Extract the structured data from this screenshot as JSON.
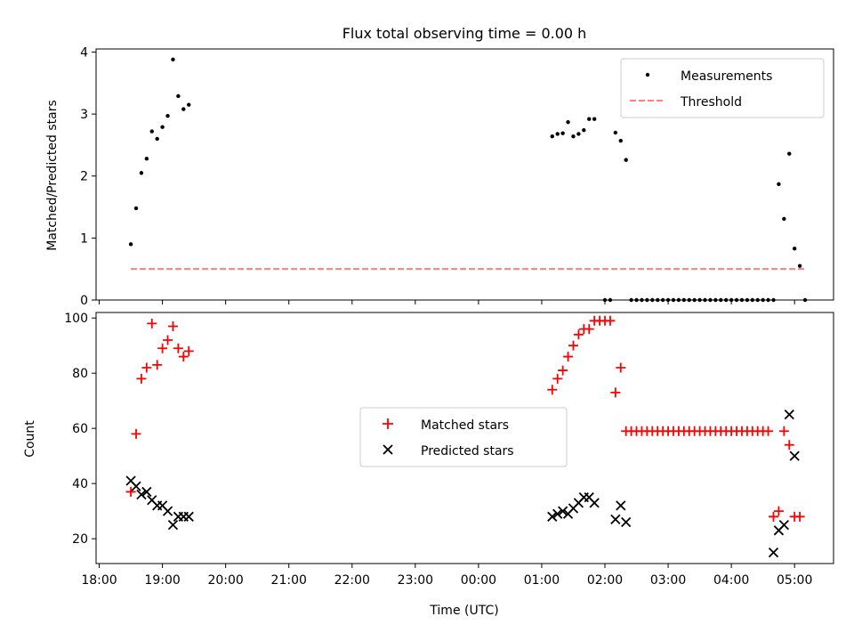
{
  "chart_data": [
    {
      "type": "scatter",
      "title": "Flux total observing time = 0.00 h",
      "ylabel": "Matched/Predicted stars",
      "ylim": [
        0,
        4.05
      ],
      "yticks": [
        0,
        1,
        2,
        3,
        4
      ],
      "legend": {
        "placement": "top-right",
        "entries": [
          "Measurements",
          "Threshold"
        ]
      },
      "series": [
        {
          "name": "Measurements",
          "marker": "dot",
          "color": "#000000",
          "x": [
            "18:30",
            "18:35",
            "18:40",
            "18:45",
            "18:50",
            "18:55",
            "19:00",
            "19:05",
            "19:10",
            "19:15",
            "19:20",
            "19:25",
            "01:10",
            "01:15",
            "01:20",
            "01:25",
            "01:30",
            "01:35",
            "01:40",
            "01:45",
            "01:50",
            "02:00",
            "02:05",
            "02:10",
            "02:15",
            "02:20",
            "02:25",
            "02:30",
            "02:35",
            "02:40",
            "02:45",
            "02:50",
            "02:55",
            "03:00",
            "03:05",
            "03:10",
            "03:15",
            "03:20",
            "03:25",
            "03:30",
            "03:35",
            "03:40",
            "03:45",
            "03:50",
            "03:55",
            "04:00",
            "04:05",
            "04:10",
            "04:15",
            "04:20",
            "04:25",
            "04:30",
            "04:35",
            "04:40",
            "04:45",
            "04:50",
            "04:55",
            "05:00",
            "05:05",
            "05:10"
          ],
          "y": [
            0.9,
            1.48,
            2.05,
            2.28,
            2.72,
            2.6,
            2.79,
            2.97,
            3.88,
            3.29,
            3.08,
            3.15,
            2.64,
            2.68,
            2.69,
            2.87,
            2.64,
            2.68,
            2.74,
            2.92,
            2.92,
            0,
            0,
            2.7,
            2.57,
            2.26,
            0,
            0,
            0,
            0,
            0,
            0,
            0,
            0,
            0,
            0,
            0,
            0,
            0,
            0,
            0,
            0,
            0,
            0,
            0,
            0,
            0,
            0,
            0,
            0,
            0,
            0,
            0,
            0,
            1.87,
            1.31,
            2.36,
            0.83,
            0.55,
            0
          ]
        },
        {
          "name": "Threshold",
          "style": "dashed",
          "color": "#ff7f7f",
          "x": [
            "18:30",
            "05:10"
          ],
          "y": [
            0.5,
            0.5
          ]
        }
      ]
    },
    {
      "type": "scatter",
      "xlabel": "Time (UTC)",
      "ylabel": "Count",
      "ylim": [
        11,
        102
      ],
      "yticks": [
        20,
        40,
        60,
        80,
        100
      ],
      "xticks": [
        "18:00",
        "19:00",
        "20:00",
        "21:00",
        "22:00",
        "23:00",
        "00:00",
        "01:00",
        "02:00",
        "03:00",
        "04:00",
        "05:00"
      ],
      "xlim": [
        "17:57",
        "05:37"
      ],
      "legend": {
        "placement": "center",
        "entries": [
          "Matched stars",
          "Predicted stars"
        ]
      },
      "series": [
        {
          "name": "Matched stars",
          "marker": "+",
          "color": "#ff0000",
          "x": [
            "18:30",
            "18:35",
            "18:40",
            "18:45",
            "18:50",
            "18:55",
            "19:00",
            "19:05",
            "19:10",
            "19:15",
            "19:20",
            "19:25",
            "01:10",
            "01:15",
            "01:20",
            "01:25",
            "01:30",
            "01:35",
            "01:40",
            "01:45",
            "01:50",
            "01:55",
            "02:00",
            "02:05",
            "02:10",
            "02:15",
            "02:20",
            "02:25",
            "02:30",
            "02:35",
            "02:40",
            "02:45",
            "02:50",
            "02:55",
            "03:00",
            "03:05",
            "03:10",
            "03:15",
            "03:20",
            "03:25",
            "03:30",
            "03:35",
            "03:40",
            "03:45",
            "03:50",
            "03:55",
            "04:00",
            "04:05",
            "04:10",
            "04:15",
            "04:20",
            "04:25",
            "04:30",
            "04:35",
            "04:40",
            "04:45",
            "04:50",
            "04:55",
            "05:00",
            "05:05"
          ],
          "y": [
            37,
            58,
            78,
            82,
            98,
            83,
            89,
            92,
            97,
            89,
            86,
            88,
            74,
            78,
            81,
            86,
            90,
            94,
            96,
            96,
            99,
            99,
            99,
            99,
            73,
            82,
            59,
            59,
            59,
            59,
            59,
            59,
            59,
            59,
            59,
            59,
            59,
            59,
            59,
            59,
            59,
            59,
            59,
            59,
            59,
            59,
            59,
            59,
            59,
            59,
            59,
            59,
            59,
            59,
            28,
            30,
            59,
            54,
            28,
            28
          ]
        },
        {
          "name": "Predicted stars",
          "marker": "x",
          "color": "#000000",
          "x": [
            "18:30",
            "18:35",
            "18:40",
            "18:45",
            "18:50",
            "18:55",
            "19:00",
            "19:05",
            "19:10",
            "19:15",
            "19:20",
            "19:25",
            "01:10",
            "01:15",
            "01:20",
            "01:25",
            "01:30",
            "01:35",
            "01:40",
            "01:45",
            "01:50",
            "02:10",
            "02:15",
            "02:20",
            "04:40",
            "04:45",
            "04:50",
            "04:55",
            "05:00"
          ],
          "y": [
            41,
            39,
            36,
            37,
            34,
            32,
            32,
            30,
            25,
            28,
            28,
            28,
            28,
            29,
            30,
            29,
            31,
            33,
            35,
            35,
            33,
            27,
            32,
            26,
            15,
            23,
            25,
            65,
            50
          ]
        }
      ]
    }
  ]
}
